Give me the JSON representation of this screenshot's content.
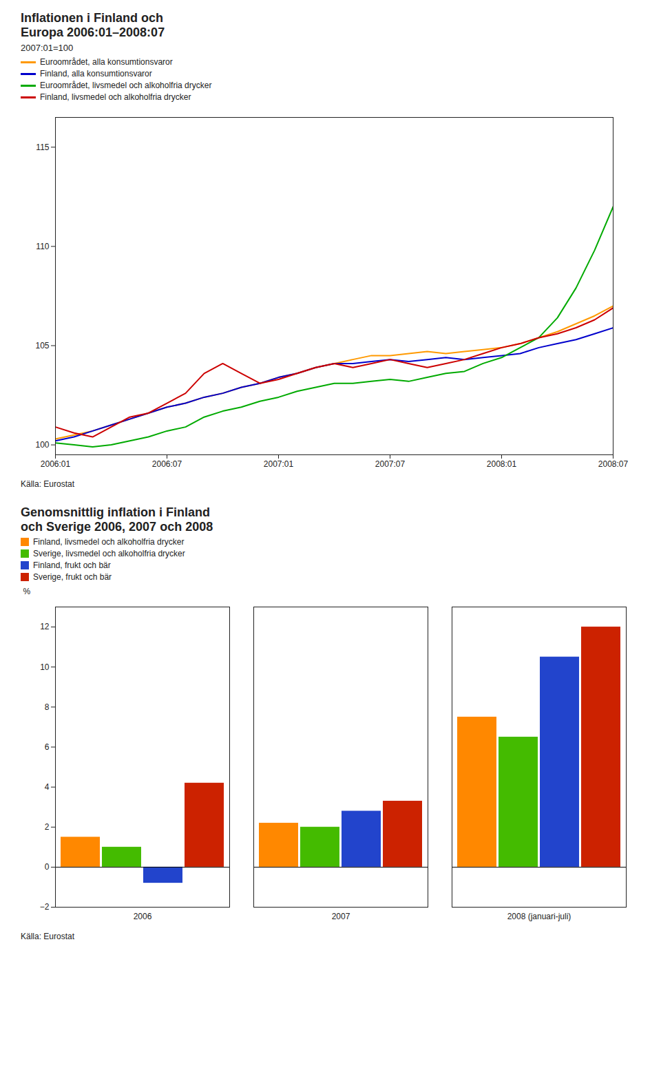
{
  "chart_data": [
    {
      "type": "line",
      "title": "Inflationen i Finland och\nEuropa 2006:01–2008:07",
      "subtitle": "2007:01=100",
      "source": "Källa: Eurostat",
      "categories": [
        "2006:01",
        null,
        null,
        null,
        null,
        null,
        "2006:07",
        null,
        null,
        null,
        null,
        null,
        "2007:01",
        null,
        null,
        null,
        null,
        null,
        "2007:07",
        null,
        null,
        null,
        null,
        null,
        "2008:01",
        null,
        null,
        null,
        null,
        null,
        "2008:07"
      ],
      "series": [
        {
          "name": "Euroområdet, alla konsumtionsvaror",
          "color": "#ff9900",
          "values": [
            100.3,
            100.5,
            100.7,
            101.0,
            101.3,
            101.6,
            101.9,
            102.1,
            102.4,
            102.6,
            102.9,
            103.1,
            103.4,
            103.6,
            103.9,
            104.1,
            104.3,
            104.5,
            104.5,
            104.6,
            104.7,
            104.6,
            104.7,
            104.8,
            104.9,
            105.1,
            105.4,
            105.7,
            106.1,
            106.5,
            107.0
          ]
        },
        {
          "name": "Finland, alla konsumtionsvaror",
          "color": "#0000cc",
          "values": [
            100.2,
            100.4,
            100.7,
            101.0,
            101.3,
            101.6,
            101.9,
            102.1,
            102.4,
            102.6,
            102.9,
            103.1,
            103.4,
            103.6,
            103.9,
            104.1,
            104.1,
            104.2,
            104.3,
            104.2,
            104.3,
            104.4,
            104.3,
            104.4,
            104.5,
            104.6,
            104.9,
            105.1,
            105.3,
            105.6,
            105.9
          ]
        },
        {
          "name": "Euroområdet, livsmedel och alkoholfria drycker",
          "color": "#00aa00",
          "values": [
            100.1,
            100.0,
            99.9,
            100.0,
            100.2,
            100.4,
            100.7,
            100.9,
            101.4,
            101.7,
            101.9,
            102.2,
            102.4,
            102.7,
            102.9,
            103.1,
            103.1,
            103.2,
            103.3,
            103.2,
            103.4,
            103.6,
            103.7,
            104.1,
            104.4,
            104.9,
            105.4,
            106.4,
            107.9,
            109.8,
            112.0
          ]
        },
        {
          "name": "Finland, livsmedel och alkoholfria drycker",
          "color": "#cc0000",
          "values": [
            100.9,
            100.6,
            100.4,
            100.9,
            101.4,
            101.6,
            102.1,
            102.6,
            103.6,
            104.1,
            103.6,
            103.1,
            103.3,
            103.6,
            103.9,
            104.1,
            103.9,
            104.1,
            104.3,
            104.1,
            103.9,
            104.1,
            104.3,
            104.6,
            104.9,
            105.1,
            105.4,
            105.6,
            105.9,
            106.3,
            106.9
          ]
        }
      ],
      "ylim": [
        99.5,
        116.5
      ],
      "yticks": [
        100,
        105,
        110,
        115
      ],
      "grid": false,
      "legend": "upper left"
    },
    {
      "type": "bar",
      "title": "Genomsnittlig inflation i Finland\noch Sverige 2006, 2007 och 2008",
      "ylabel": "%",
      "source": "Källa: Eurostat",
      "categories": [
        "2006",
        "2007",
        "2008 (januari-juli)"
      ],
      "series": [
        {
          "name": "Finland, livsmedel och alkoholfria drycker",
          "color": "#ff8800",
          "values": [
            1.5,
            2.2,
            7.5
          ]
        },
        {
          "name": "Sverige, livsmedel och alkoholfria drycker",
          "color": "#44bb00",
          "values": [
            1.0,
            2.0,
            6.5
          ]
        },
        {
          "name": "Finland, frukt och bär",
          "color": "#2244cc",
          "values": [
            -0.8,
            2.8,
            10.5
          ]
        },
        {
          "name": "Sverige, frukt och bär",
          "color": "#cc2200",
          "values": [
            4.2,
            3.3,
            12.0
          ]
        }
      ],
      "ylim": [
        -2,
        13
      ],
      "yticks": [
        -2,
        0,
        2,
        4,
        6,
        8,
        10,
        12
      ],
      "grid": false,
      "legend": "upper left"
    }
  ]
}
